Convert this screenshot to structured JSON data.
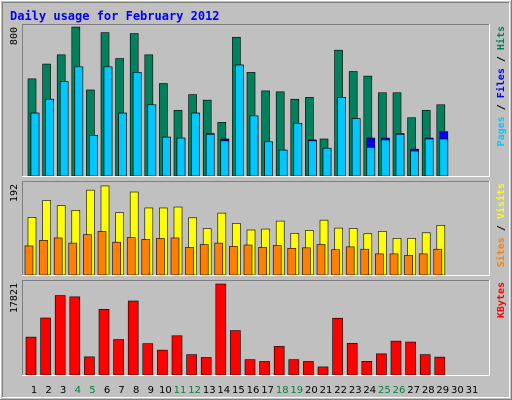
{
  "title": "Daily usage for February 2012",
  "colors": {
    "background": "#c0c0c0",
    "panel": "#c0c0c0",
    "title": "#0000ff",
    "hits": "#00805c",
    "files": "#0000ff",
    "pages": "#00c8ff",
    "visits": "#ffff00",
    "sites": "#ff8000",
    "kbytes": "#ff0000",
    "weekend_label": "#008040",
    "weekday_label": "#000000"
  },
  "chart_data": [
    {
      "type": "bar",
      "panel": "hits-files-pages",
      "max_label": "800",
      "side_label": "Pages / Files / Hits",
      "side_label_parts": [
        "Pages",
        " / ",
        "Files",
        " / ",
        "Hits"
      ],
      "ylim": [
        0,
        800
      ],
      "categories": [
        "1",
        "2",
        "3",
        "4",
        "5",
        "6",
        "7",
        "8",
        "9",
        "10",
        "11",
        "12",
        "13",
        "14",
        "15",
        "16",
        "17",
        "18",
        "19",
        "20",
        "21",
        "22",
        "23",
        "24",
        "25",
        "26",
        "27",
        "28",
        "29",
        "30",
        "31"
      ],
      "series": [
        {
          "name": "Hits",
          "values": [
            525,
            605,
            655,
            805,
            465,
            775,
            635,
            770,
            655,
            500,
            355,
            440,
            410,
            290,
            750,
            560,
            460,
            455,
            415,
            425,
            200,
            680,
            565,
            540,
            450,
            450,
            315,
            355,
            385,
            0,
            0
          ]
        },
        {
          "name": "Files",
          "values": [
            340,
            415,
            510,
            590,
            220,
            590,
            340,
            560,
            385,
            210,
            205,
            340,
            230,
            200,
            600,
            325,
            185,
            140,
            285,
            195,
            150,
            425,
            310,
            205,
            205,
            230,
            145,
            205,
            240,
            0,
            0
          ]
        },
        {
          "name": "Pages",
          "values": [
            340,
            415,
            510,
            590,
            220,
            590,
            340,
            560,
            385,
            210,
            205,
            340,
            225,
            190,
            600,
            325,
            185,
            140,
            285,
            190,
            150,
            425,
            310,
            155,
            195,
            225,
            135,
            200,
            200,
            0,
            0
          ]
        }
      ]
    },
    {
      "type": "bar",
      "panel": "visits-sites",
      "max_label": "192",
      "side_label": "Sites / Visits",
      "side_label_parts": [
        "Sites",
        " / ",
        "Visits"
      ],
      "ylim": [
        0,
        192
      ],
      "categories": [
        "1",
        "2",
        "3",
        "4",
        "5",
        "6",
        "7",
        "8",
        "9",
        "10",
        "11",
        "12",
        "13",
        "14",
        "15",
        "16",
        "17",
        "18",
        "19",
        "20",
        "21",
        "22",
        "23",
        "24",
        "25",
        "26",
        "27",
        "28",
        "29",
        "30",
        "31"
      ],
      "series": [
        {
          "name": "Visits",
          "values": [
            123,
            159,
            148,
            138,
            181,
            190,
            133,
            177,
            143,
            143,
            145,
            122,
            99,
            132,
            110,
            96,
            98,
            115,
            89,
            95,
            117,
            100,
            99,
            88,
            93,
            78,
            78,
            90,
            106,
            0,
            0
          ]
        },
        {
          "name": "Sites",
          "values": [
            62,
            74,
            79,
            68,
            86,
            93,
            70,
            80,
            76,
            78,
            79,
            59,
            65,
            68,
            61,
            64,
            59,
            63,
            57,
            58,
            65,
            54,
            60,
            55,
            45,
            45,
            42,
            45,
            55,
            0,
            0
          ]
        }
      ]
    },
    {
      "type": "bar",
      "panel": "kbytes",
      "max_label": "17821",
      "side_label": "KBytes",
      "ylim": [
        0,
        17821
      ],
      "categories": [
        "1",
        "2",
        "3",
        "4",
        "5",
        "6",
        "7",
        "8",
        "9",
        "10",
        "11",
        "12",
        "13",
        "14",
        "15",
        "16",
        "17",
        "18",
        "19",
        "20",
        "21",
        "22",
        "23",
        "24",
        "25",
        "26",
        "27",
        "28",
        "29",
        "30",
        "31"
      ],
      "series": [
        {
          "name": "KBytes",
          "values": [
            7420,
            11160,
            15560,
            15300,
            3550,
            12870,
            6950,
            14490,
            6140,
            4870,
            7680,
            3990,
            3430,
            17821,
            8700,
            3010,
            2650,
            5600,
            3010,
            2650,
            1580,
            11120,
            6210,
            2670,
            4140,
            6630,
            6450,
            3990,
            3500,
            0,
            0
          ]
        }
      ]
    }
  ],
  "x_labels": [
    "1",
    "2",
    "3",
    "4",
    "5",
    "6",
    "7",
    "8",
    "9",
    "10",
    "11",
    "12",
    "13",
    "14",
    "15",
    "16",
    "17",
    "18",
    "19",
    "20",
    "21",
    "22",
    "23",
    "24",
    "25",
    "26",
    "27",
    "28",
    "29",
    "30",
    "31"
  ],
  "weekend_days": [
    4,
    5,
    11,
    12,
    18,
    19,
    25,
    26
  ]
}
